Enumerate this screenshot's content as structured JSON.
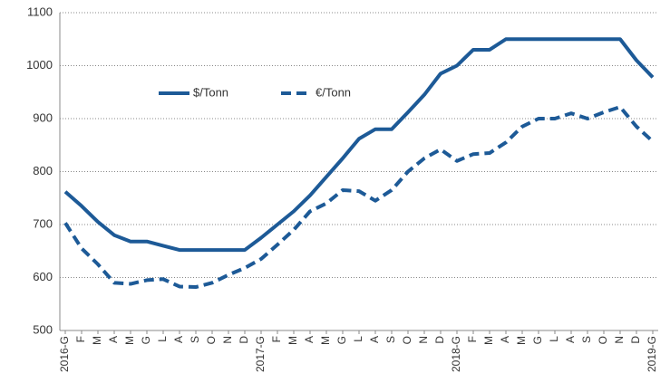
{
  "chart_data": {
    "type": "line",
    "categories": [
      "2016-G",
      "F",
      "M",
      "A",
      "M",
      "G",
      "L",
      "A",
      "S",
      "O",
      "N",
      "D",
      "2017-G",
      "F",
      "M",
      "A",
      "M",
      "G",
      "L",
      "A",
      "S",
      "O",
      "N",
      "D",
      "2018-G",
      "F",
      "M",
      "A",
      "M",
      "G",
      "L",
      "A",
      "S",
      "O",
      "N",
      "D",
      "2019-G"
    ],
    "series": [
      {
        "name": "$/Tonn",
        "color": "#1d5a97",
        "dashed": false,
        "values": [
          762,
          735,
          705,
          680,
          668,
          668,
          660,
          652,
          652,
          652,
          652,
          652,
          675,
          700,
          725,
          755,
          790,
          825,
          862,
          880,
          880,
          912,
          945,
          985,
          1000,
          1030,
          1030,
          1050,
          1050,
          1050,
          1050,
          1050,
          1050,
          1050,
          1050,
          1010,
          978
        ]
      },
      {
        "name": "€/Tonn",
        "color": "#1d5a97",
        "dashed": true,
        "values": [
          703,
          655,
          625,
          590,
          588,
          595,
          597,
          583,
          582,
          590,
          605,
          618,
          635,
          662,
          690,
          725,
          740,
          765,
          763,
          745,
          765,
          800,
          825,
          842,
          820,
          833,
          835,
          855,
          885,
          900,
          900,
          910,
          900,
          912,
          922,
          885,
          857
        ]
      }
    ],
    "ylim": [
      500,
      1100
    ],
    "yticks": [
      500,
      600,
      700,
      800,
      900,
      1000,
      1100
    ],
    "grid": true,
    "legend": "top-center"
  }
}
